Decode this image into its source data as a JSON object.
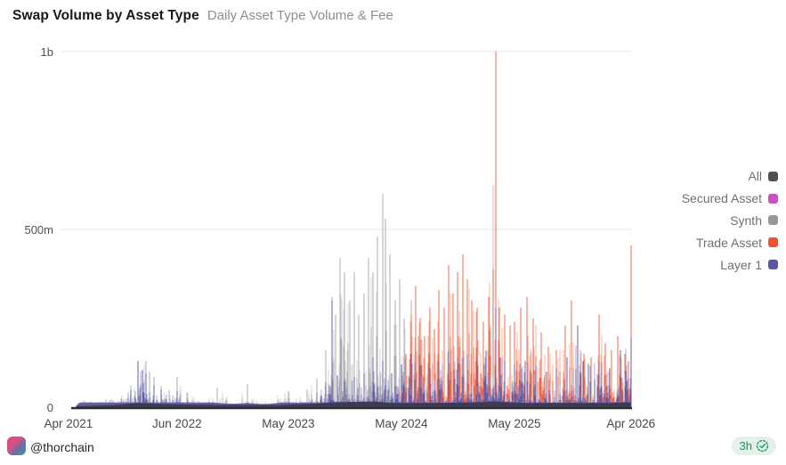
{
  "header": {
    "title": "Swap Volume by Asset Type",
    "subtitle": "Daily Asset Type Volume & Fee"
  },
  "legend": {
    "items": [
      {
        "label": "All",
        "color": "#505055"
      },
      {
        "label": "Secured Asset",
        "color": "#cc50bd"
      },
      {
        "label": "Synth",
        "color": "#98989b"
      },
      {
        "label": "Trade Asset",
        "color": "#f0512e"
      },
      {
        "label": "Layer 1",
        "color": "#5956a5"
      }
    ]
  },
  "footer": {
    "handle": "@thorchain",
    "badge_label": "3h"
  },
  "chart_data": {
    "type": "area",
    "title": "Swap Volume by Asset Type",
    "subtitle": "Daily Asset Type Volume & Fee",
    "unit": "daily swap volume in USD (m = millions, b = billions)",
    "grid": "horizontal-only",
    "legend_position": "right",
    "y_axis": {
      "max": 1000,
      "ticks": [
        {
          "label": "1b",
          "value": 1000
        },
        {
          "label": "500m",
          "value": 500
        },
        {
          "label": "0",
          "value": 0
        }
      ]
    },
    "x_axis": {
      "note": "month = months after Apr 2021; pos = fractional position across plot width",
      "ticks": [
        {
          "label": "Apr 2021",
          "month": 0,
          "pos": 0.003
        },
        {
          "label": "Jun 2022",
          "month": 14,
          "pos": 0.195
        },
        {
          "label": "May 2023",
          "month": 25,
          "pos": 0.392
        },
        {
          "label": "May 2024",
          "month": 37,
          "pos": 0.592
        },
        {
          "label": "May 2025",
          "month": 49,
          "pos": 0.792
        },
        {
          "label": "Apr 2026",
          "month": 60,
          "pos": 0.998
        }
      ]
    },
    "series": [
      {
        "name": "All",
        "color": "#3c3a54",
        "color_light": "#3c3a54",
        "solid": true,
        "envelope": [
          [
            1,
            3
          ],
          [
            6,
            6
          ],
          [
            9,
            12
          ],
          [
            12,
            9
          ],
          [
            18,
            6
          ],
          [
            24,
            6
          ],
          [
            28,
            10
          ],
          [
            30,
            14
          ],
          [
            34,
            16
          ],
          [
            36,
            12
          ],
          [
            40,
            12
          ],
          [
            44,
            13
          ],
          [
            47,
            16
          ],
          [
            50,
            12
          ],
          [
            54,
            12
          ],
          [
            58,
            12
          ],
          [
            60,
            14
          ]
        ]
      },
      {
        "name": "Secured Asset",
        "color": "#cc50bd",
        "color_light": "#e09ad6",
        "solid": false,
        "envelope": [
          [
            0,
            0
          ],
          [
            60,
            0
          ]
        ]
      },
      {
        "name": "Synth",
        "color": "#a9a9ab",
        "color_light": "#d0d0d2",
        "solid": false,
        "envelope": [
          [
            3,
            0
          ],
          [
            4,
            5
          ],
          [
            6,
            18
          ],
          [
            8,
            60
          ],
          [
            9,
            125
          ],
          [
            10,
            130
          ],
          [
            10.5,
            100
          ],
          [
            11,
            85
          ],
          [
            12,
            60
          ],
          [
            13,
            48
          ],
          [
            14,
            85
          ],
          [
            15,
            42
          ],
          [
            16,
            30
          ],
          [
            17,
            28
          ],
          [
            18,
            55
          ],
          [
            19,
            30
          ],
          [
            20,
            30
          ],
          [
            21,
            65
          ],
          [
            22,
            28
          ],
          [
            23,
            25
          ],
          [
            24,
            35
          ],
          [
            25,
            45
          ],
          [
            26,
            30
          ],
          [
            27,
            50
          ],
          [
            28,
            80
          ],
          [
            29,
            160
          ],
          [
            29.6,
            310
          ],
          [
            30,
            260
          ],
          [
            30.5,
            420
          ],
          [
            31,
            380
          ],
          [
            31.5,
            300
          ],
          [
            32,
            380
          ],
          [
            32.5,
            260
          ],
          [
            33,
            320
          ],
          [
            33.5,
            420
          ],
          [
            34,
            380
          ],
          [
            34.5,
            480
          ],
          [
            35,
            600
          ],
          [
            35.3,
            530
          ],
          [
            35.8,
            430
          ],
          [
            36.3,
            300
          ],
          [
            36.8,
            360
          ],
          [
            37.3,
            250
          ],
          [
            38,
            300
          ],
          [
            38.8,
            200
          ],
          [
            39.5,
            140
          ],
          [
            40.5,
            70
          ],
          [
            41.5,
            40
          ],
          [
            42.5,
            25
          ],
          [
            44,
            14
          ],
          [
            46,
            9
          ],
          [
            48,
            6
          ],
          [
            52,
            4
          ],
          [
            56,
            3
          ],
          [
            60,
            3
          ]
        ]
      },
      {
        "name": "Trade Asset",
        "color": "#f0603f",
        "color_light": "#f7a892",
        "solid": false,
        "envelope": [
          [
            36,
            0
          ],
          [
            36.8,
            40
          ],
          [
            37.5,
            150
          ],
          [
            38,
            260
          ],
          [
            38.5,
            340
          ],
          [
            39,
            250
          ],
          [
            39.5,
            200
          ],
          [
            40,
            280
          ],
          [
            40.5,
            220
          ],
          [
            41,
            330
          ],
          [
            41.5,
            280
          ],
          [
            42,
            400
          ],
          [
            42.5,
            320
          ],
          [
            43,
            380
          ],
          [
            43.5,
            430
          ],
          [
            44,
            360
          ],
          [
            44.5,
            300
          ],
          [
            45,
            280
          ],
          [
            45.7,
            240
          ],
          [
            46.3,
            310
          ],
          [
            47,
            1000
          ],
          [
            47.4,
            280
          ],
          [
            48,
            260
          ],
          [
            48.5,
            230
          ],
          [
            49,
            240
          ],
          [
            49.6,
            280
          ],
          [
            50.2,
            310
          ],
          [
            50.8,
            250
          ],
          [
            51.5,
            210
          ],
          [
            52.2,
            170
          ],
          [
            53,
            160
          ],
          [
            53.8,
            230
          ],
          [
            54.4,
            300
          ],
          [
            55,
            190
          ],
          [
            55.6,
            150
          ],
          [
            56.2,
            140
          ],
          [
            57,
            260
          ],
          [
            57.6,
            180
          ],
          [
            58.2,
            160
          ],
          [
            58.8,
            200
          ],
          [
            59.4,
            150
          ],
          [
            59.8,
            130
          ],
          [
            60,
            455
          ]
        ]
      },
      {
        "name": "Layer 1",
        "color": "#5c59a7",
        "color_light": "#9f9dcc",
        "solid": false,
        "envelope": [
          [
            1,
            4
          ],
          [
            2,
            26
          ],
          [
            2.5,
            32
          ],
          [
            3,
            18
          ],
          [
            4,
            14
          ],
          [
            5,
            25
          ],
          [
            6,
            38
          ],
          [
            7,
            30
          ],
          [
            8,
            48
          ],
          [
            9,
            130
          ],
          [
            9.5,
            105
          ],
          [
            10,
            95
          ],
          [
            11,
            62
          ],
          [
            12,
            50
          ],
          [
            13,
            38
          ],
          [
            14,
            45
          ],
          [
            15,
            28
          ],
          [
            16,
            20
          ],
          [
            17,
            15
          ],
          [
            18,
            12
          ],
          [
            19,
            10
          ],
          [
            20,
            10
          ],
          [
            21,
            12
          ],
          [
            22,
            9
          ],
          [
            23,
            9
          ],
          [
            24,
            12
          ],
          [
            25,
            15
          ],
          [
            26,
            12
          ],
          [
            27,
            20
          ],
          [
            28,
            40
          ],
          [
            29,
            70
          ],
          [
            29.6,
            300
          ],
          [
            30.2,
            90
          ],
          [
            31,
            75
          ],
          [
            32,
            85
          ],
          [
            33,
            95
          ],
          [
            34,
            140
          ],
          [
            35,
            130
          ],
          [
            36,
            95
          ],
          [
            37,
            120
          ],
          [
            38,
            150
          ],
          [
            39,
            120
          ],
          [
            40,
            110
          ],
          [
            41,
            130
          ],
          [
            42,
            160
          ],
          [
            43,
            140
          ],
          [
            44,
            150
          ],
          [
            45,
            130
          ],
          [
            46,
            160
          ],
          [
            47,
            280
          ],
          [
            47.5,
            140
          ],
          [
            48,
            130
          ],
          [
            49,
            120
          ],
          [
            50,
            130
          ],
          [
            51,
            120
          ],
          [
            52,
            100
          ],
          [
            53,
            110
          ],
          [
            54,
            140
          ],
          [
            55,
            230
          ],
          [
            55.5,
            130
          ],
          [
            56,
            120
          ],
          [
            57,
            130
          ],
          [
            58,
            110
          ],
          [
            59,
            160
          ],
          [
            60,
            195
          ]
        ]
      }
    ]
  }
}
